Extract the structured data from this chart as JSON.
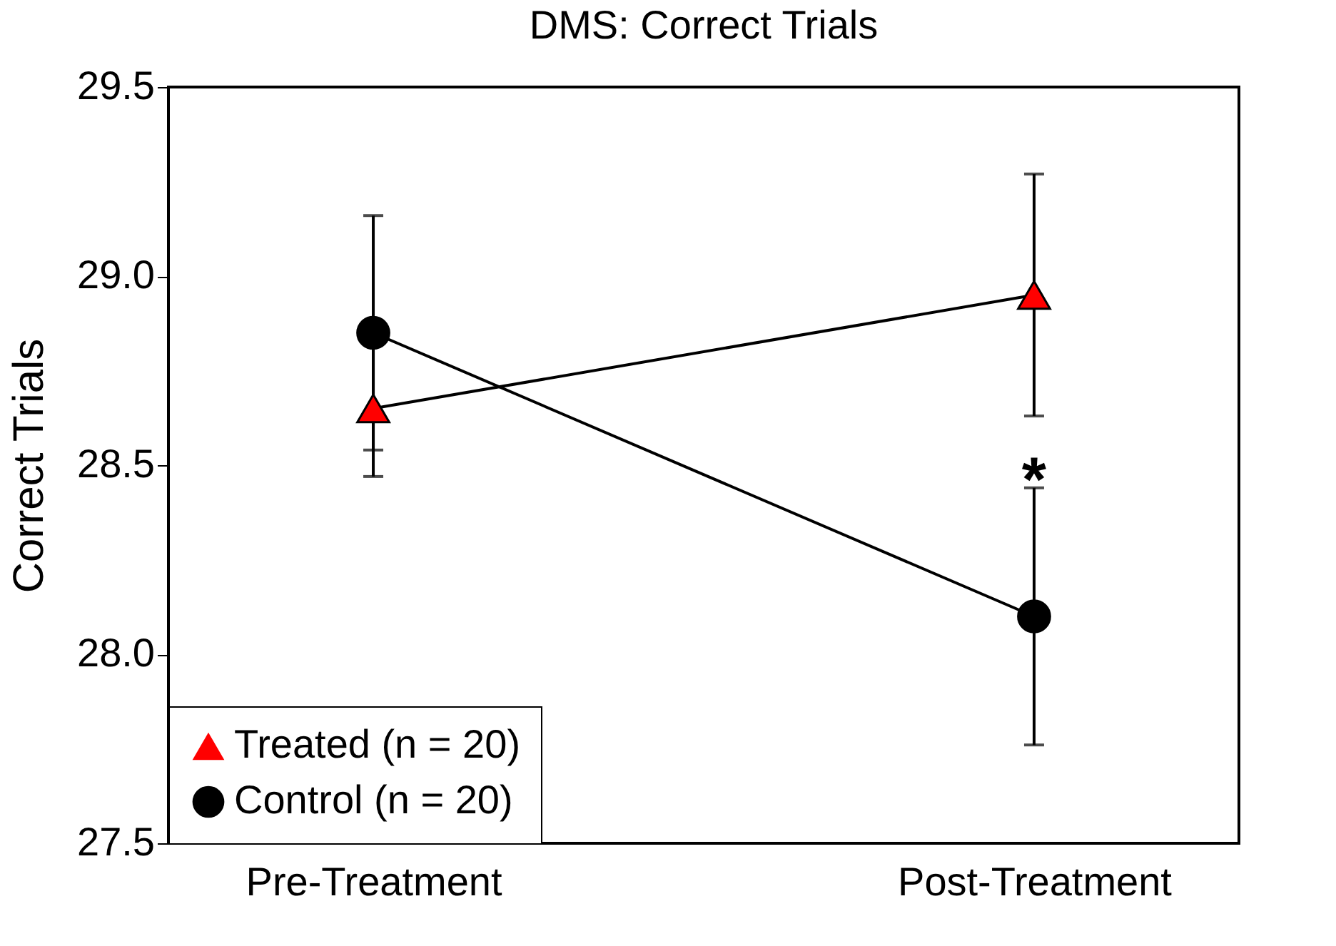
{
  "chart_data": {
    "type": "line",
    "title": "DMS:  Correct Trials",
    "ylabel": "Correct Trials",
    "categories": [
      "Pre-Treatment",
      "Post-Treatment"
    ],
    "series": [
      {
        "name": "Treated (n = 20)",
        "color": "#ff0000",
        "marker": "triangle",
        "values": [
          28.65,
          28.95
        ],
        "errors": [
          0.18,
          0.32
        ]
      },
      {
        "name": "Control (n = 20)",
        "color": "#000000",
        "marker": "circle",
        "values": [
          28.85,
          28.1
        ],
        "errors": [
          0.31,
          0.34
        ]
      }
    ],
    "ylim": [
      27.5,
      29.5
    ],
    "yticks": [
      27.5,
      {
        "value": 28,
        "label": "28.0"
      },
      28.5,
      {
        "value": 29,
        "label": "29.0"
      },
      29.5
    ],
    "annotations": [
      "*"
    ],
    "grid": false,
    "legend": "bottom left",
    "line_style": "solid"
  }
}
